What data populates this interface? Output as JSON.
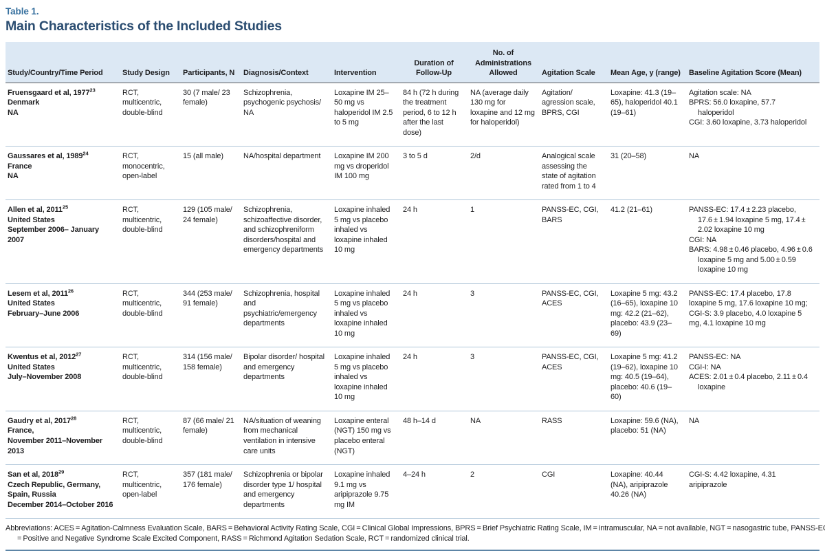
{
  "table_label": "Table 1.",
  "title": "Main Characteristics of the Included Studies",
  "colors": {
    "accent_blue": "#38719f",
    "title_navy": "#2b4d71",
    "header_bg": "#dce8f4",
    "row_divider": "#aec5d8",
    "bottom_rule": "#5d85a6"
  },
  "columns": [
    "Study/Country/Time Period",
    "Study Design",
    "Participants, N",
    "Diagnosis/Context",
    "Intervention",
    "Duration of Follow-Up",
    "No. of Administrations Allowed",
    "Agitation Scale",
    "Mean Age, y (range)",
    "Baseline Agitation Score (Mean)"
  ],
  "rows": [
    {
      "study": "Fruensgaard et al, 1977",
      "ref": "23",
      "study_lines": [
        "Denmark",
        "NA"
      ],
      "design": "RCT, multicentric, double-blind",
      "participants": "30 (7 male/ 23 female)",
      "diagnosis": "Schizophrenia, psychogenic psychosis/ NA",
      "intervention": "Loxapine IM 25–50 mg vs haloperidol IM 2.5 to 5 mg",
      "duration": "84 h (72 h during the treatment period, 6 to 12 h after the last dose)",
      "administrations": "NA (average daily 130 mg for loxapine and 12 mg for haloperidol)",
      "scale": "Agitation/ agression scale, BPRS, CGI",
      "mean_age": "Loxapine: 41.3 (19–65), haloperidol 40.1 (19–61)",
      "baseline": [
        "Agitation scale: NA",
        "BPRS: 56.0 loxapine, 57.7 haloperidol",
        "CGI: 3.60 loxapine, 3.73 haloperidol"
      ]
    },
    {
      "study": "Gaussares et al, 1989",
      "ref": "24",
      "study_lines": [
        "France",
        "NA"
      ],
      "design": "RCT, monocentric, open-label",
      "participants": "15 (all male)",
      "diagnosis": "NA/hospital department",
      "intervention": "Loxapine IM 200 mg vs droperidol IM 100 mg",
      "duration": "3 to 5 d",
      "administrations": "2/d",
      "scale": "Analogical scale assessing the state of agitation rated from 1 to 4",
      "mean_age": "31 (20–58)",
      "baseline": [
        "NA"
      ]
    },
    {
      "study": "Allen et al, 2011",
      "ref": "25",
      "study_lines": [
        "United States",
        "September 2006– January",
        "2007"
      ],
      "design": "RCT, multicentric, double-blind",
      "participants": "129 (105 male/ 24 female)",
      "diagnosis": "Schizophrenia, schizoaffective disorder, and schizophreniform disorders/hospital and emergency departments",
      "intervention": "Loxapine inhaled 5 mg vs placebo inhaled vs loxapine inhaled 10 mg",
      "duration": "24 h",
      "administrations": "1",
      "scale": "PANSS-EC, CGI, BARS",
      "mean_age": "41.2 (21–61)",
      "baseline": [
        "PANSS-EC: 17.4 ± 2.23 placebo, 17.6 ± 1.94 loxapine 5 mg, 17.4 ± 2.02 loxapine 10 mg",
        "CGI: NA",
        "BARS: 4.98 ± 0.46 placebo, 4.96 ± 0.6 loxapine 5 mg and 5.00 ± 0.59 loxapine 10 mg"
      ]
    },
    {
      "study": "Lesem et al, 2011",
      "ref": "26",
      "study_lines": [
        "United States",
        "February–June 2006"
      ],
      "design": "RCT, multicentric, double-blind",
      "participants": "344 (253 male/ 91 female)",
      "diagnosis": "Schizophrenia, hospital and psychiatric/emergency departments",
      "intervention": "Loxapine inhaled 5 mg vs placebo inhaled vs loxapine inhaled 10 mg",
      "duration": "24 h",
      "administrations": "3",
      "scale": "PANSS-EC, CGI, ACES",
      "mean_age": "Loxapine 5 mg: 43.2 (16–65), loxapine 10 mg: 42.2 (21–62), placebo: 43.9 (23–69)",
      "baseline": [
        "PANSS-EC: 17.4 placebo, 17.8 loxapine 5 mg, 17.6 loxapine 10 mg; CGI-S: 3.9 placebo, 4.0 loxapine 5 mg, 4.1 loxapine 10 mg"
      ]
    },
    {
      "study": "Kwentus et al, 2012",
      "ref": "27",
      "study_lines": [
        "United States",
        "July–November 2008"
      ],
      "design": "RCT, multicentric, double-blind",
      "participants": "314 (156 male/ 158 female)",
      "diagnosis": "Bipolar disorder/ hospital and emergency departments",
      "intervention": "Loxapine inhaled 5 mg vs placebo inhaled vs loxapine inhaled 10 mg",
      "duration": "24 h",
      "administrations": "3",
      "scale": "PANSS-EC, CGI, ACES",
      "mean_age": "Loxapine 5 mg: 41.2 (19–62), loxapine 10 mg: 40.5 (19–64), placebo: 40.6 (19–60)",
      "baseline": [
        "PANSS-EC: NA",
        "CGI-I: NA",
        "ACES: 2.01 ± 0.4 placebo, 2.11 ± 0.4 loxapine"
      ]
    },
    {
      "study": "Gaudry et al, 2017",
      "ref": "28",
      "study_lines": [
        "France,",
        "November 2011–November",
        "2013"
      ],
      "design": "RCT, multicentric, double-blind",
      "participants": "87 (66 male/ 21 female)",
      "diagnosis": "NA/situation of weaning from mechanical ventilation in intensive care units",
      "intervention": "Loxapine enteral (NGT) 150 mg vs placebo enteral (NGT)",
      "duration": "48 h–14 d",
      "administrations": "NA",
      "scale": "RASS",
      "mean_age": "Loxapine: 59.6 (NA), placebo: 51 (NA)",
      "baseline": [
        "NA"
      ]
    },
    {
      "study": "San et al, 2018",
      "ref": "29",
      "study_lines": [
        "Czech Republic, Germany,",
        "Spain, Russia",
        "December 2014–October 2016"
      ],
      "design": "RCT, multicentric, open-label",
      "participants": "357 (181 male/ 176 female)",
      "diagnosis": "Schizophrenia or bipolar disorder type 1/ hospital and emergency departments",
      "intervention": "Loxapine inhaled 9.1 mg vs aripiprazole 9.75 mg IM",
      "duration": "4–24 h",
      "administrations": "2",
      "scale": "CGI",
      "mean_age": "Loxapine: 40.44 (NA), aripiprazole 40.26 (NA)",
      "baseline": [
        "CGI-S: 4.42 loxapine, 4.31 aripiprazole"
      ]
    }
  ],
  "footnote": "Abbreviations: ACES = Agitation-Calmness Evaluation Scale, BARS = Behavioral Activity Rating Scale, CGI = Clinical Global Impressions, BPRS = Brief Psychiatric Rating Scale, IM = intramuscular, NA = not available, NGT = nasogastric tube, PANSS-EC = Positive and Negative Syndrome Scale Excited Component, RASS = Richmond Agitation Sedation Scale, RCT = randomized clinical trial."
}
